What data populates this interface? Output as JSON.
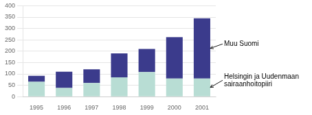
{
  "chart_data": {
    "type": "bar",
    "stacked": true,
    "categories": [
      "1995",
      "1996",
      "1997",
      "1998",
      "1999",
      "2000",
      "2001"
    ],
    "series": [
      {
        "name": "Helsingin ja Uudenmaan\nsairaanhoitopiiri",
        "color": "#b8ddd4",
        "values": [
          65,
          38,
          60,
          85,
          108,
          80,
          80
        ]
      },
      {
        "name": "Muu Suomi",
        "color": "#3b3b8c",
        "values": [
          27,
          72,
          60,
          105,
          102,
          182,
          265
        ]
      }
    ],
    "ylim": [
      0,
      400
    ],
    "yticks": [
      0,
      50,
      100,
      150,
      200,
      250,
      300,
      350,
      400
    ],
    "grid": true
  }
}
